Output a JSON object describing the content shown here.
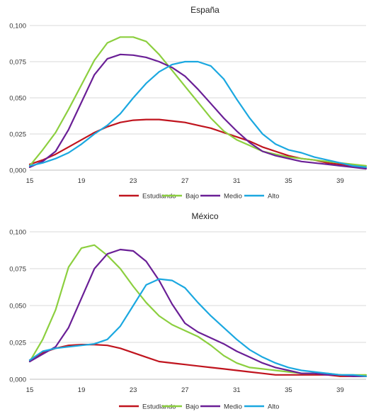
{
  "chart_data": [
    {
      "type": "line",
      "title": "España",
      "xlabel": "",
      "ylabel": "",
      "xlim": [
        15,
        41
      ],
      "ylim": [
        0,
        0.1
      ],
      "x_ticks": [
        "15",
        "19",
        "23",
        "27",
        "31",
        "35",
        "39"
      ],
      "y_ticks": [
        "0,000",
        "0,025",
        "0,050",
        "0,075",
        "0,100"
      ],
      "grid": true,
      "legend": "bottom",
      "x": [
        15,
        16,
        17,
        18,
        19,
        20,
        21,
        22,
        23,
        24,
        25,
        26,
        27,
        28,
        29,
        30,
        31,
        32,
        33,
        34,
        35,
        36,
        37,
        38,
        39,
        40,
        41
      ],
      "series": [
        {
          "name": "Estudiando",
          "color": "#c0141e",
          "values": [
            0.004,
            0.007,
            0.011,
            0.016,
            0.021,
            0.026,
            0.03,
            0.033,
            0.0345,
            0.035,
            0.035,
            0.034,
            0.033,
            0.031,
            0.029,
            0.026,
            0.023,
            0.02,
            0.016,
            0.013,
            0.01,
            0.008,
            0.007,
            0.005,
            0.004,
            0.003,
            0.002
          ]
        },
        {
          "name": "Bajo",
          "color": "#8ccf3f",
          "values": [
            0.003,
            0.014,
            0.026,
            0.042,
            0.059,
            0.076,
            0.088,
            0.092,
            0.092,
            0.089,
            0.08,
            0.069,
            0.058,
            0.047,
            0.036,
            0.027,
            0.021,
            0.017,
            0.013,
            0.011,
            0.009,
            0.008,
            0.007,
            0.006,
            0.005,
            0.004,
            0.003
          ]
        },
        {
          "name": "Medio",
          "color": "#6a1f96",
          "values": [
            0.002,
            0.006,
            0.013,
            0.028,
            0.047,
            0.066,
            0.077,
            0.08,
            0.0795,
            0.078,
            0.075,
            0.071,
            0.065,
            0.056,
            0.046,
            0.036,
            0.027,
            0.019,
            0.013,
            0.01,
            0.008,
            0.006,
            0.005,
            0.004,
            0.003,
            0.002,
            0.001
          ]
        },
        {
          "name": "Alto",
          "color": "#1ba8e0",
          "values": [
            0.003,
            0.005,
            0.008,
            0.012,
            0.018,
            0.025,
            0.031,
            0.039,
            0.05,
            0.06,
            0.068,
            0.073,
            0.075,
            0.075,
            0.072,
            0.063,
            0.049,
            0.036,
            0.025,
            0.018,
            0.014,
            0.012,
            0.009,
            0.007,
            0.005,
            0.003,
            0.002
          ]
        }
      ]
    },
    {
      "type": "line",
      "title": "México",
      "xlabel": "",
      "ylabel": "",
      "xlim": [
        15,
        41
      ],
      "ylim": [
        0,
        0.1
      ],
      "x_ticks": [
        "15",
        "19",
        "23",
        "27",
        "31",
        "35",
        "39"
      ],
      "y_ticks": [
        "0,000",
        "0,025",
        "0,050",
        "0,075",
        "0,100"
      ],
      "grid": true,
      "legend": "bottom",
      "x": [
        15,
        16,
        17,
        18,
        19,
        20,
        21,
        22,
        23,
        24,
        25,
        26,
        27,
        28,
        29,
        30,
        31,
        32,
        33,
        34,
        35,
        36,
        37,
        38,
        39,
        40,
        41
      ],
      "series": [
        {
          "name": "Estudiando",
          "color": "#c0141e",
          "values": [
            0.013,
            0.018,
            0.021,
            0.023,
            0.0235,
            0.0235,
            0.023,
            0.021,
            0.018,
            0.015,
            0.012,
            0.011,
            0.01,
            0.009,
            0.008,
            0.007,
            0.006,
            0.005,
            0.004,
            0.003,
            0.003,
            0.003,
            0.003,
            0.003,
            0.002,
            0.002,
            0.002
          ]
        },
        {
          "name": "Bajo",
          "color": "#8ccf3f",
          "values": [
            0.012,
            0.027,
            0.047,
            0.076,
            0.089,
            0.091,
            0.084,
            0.075,
            0.063,
            0.052,
            0.043,
            0.037,
            0.033,
            0.029,
            0.023,
            0.016,
            0.011,
            0.008,
            0.007,
            0.006,
            0.005,
            0.004,
            0.004,
            0.004,
            0.003,
            0.003,
            0.003
          ]
        },
        {
          "name": "Medio",
          "color": "#6a1f96",
          "values": [
            0.012,
            0.017,
            0.022,
            0.035,
            0.055,
            0.075,
            0.085,
            0.088,
            0.087,
            0.08,
            0.067,
            0.051,
            0.038,
            0.032,
            0.028,
            0.024,
            0.019,
            0.015,
            0.011,
            0.008,
            0.006,
            0.004,
            0.004,
            0.003,
            0.003,
            0.002,
            0.002
          ]
        },
        {
          "name": "Alto",
          "color": "#1ba8e0",
          "values": [
            0.013,
            0.019,
            0.021,
            0.022,
            0.023,
            0.024,
            0.027,
            0.036,
            0.05,
            0.064,
            0.068,
            0.067,
            0.062,
            0.052,
            0.043,
            0.035,
            0.027,
            0.02,
            0.015,
            0.011,
            0.008,
            0.006,
            0.005,
            0.004,
            0.003,
            0.003,
            0.002
          ]
        }
      ]
    }
  ]
}
